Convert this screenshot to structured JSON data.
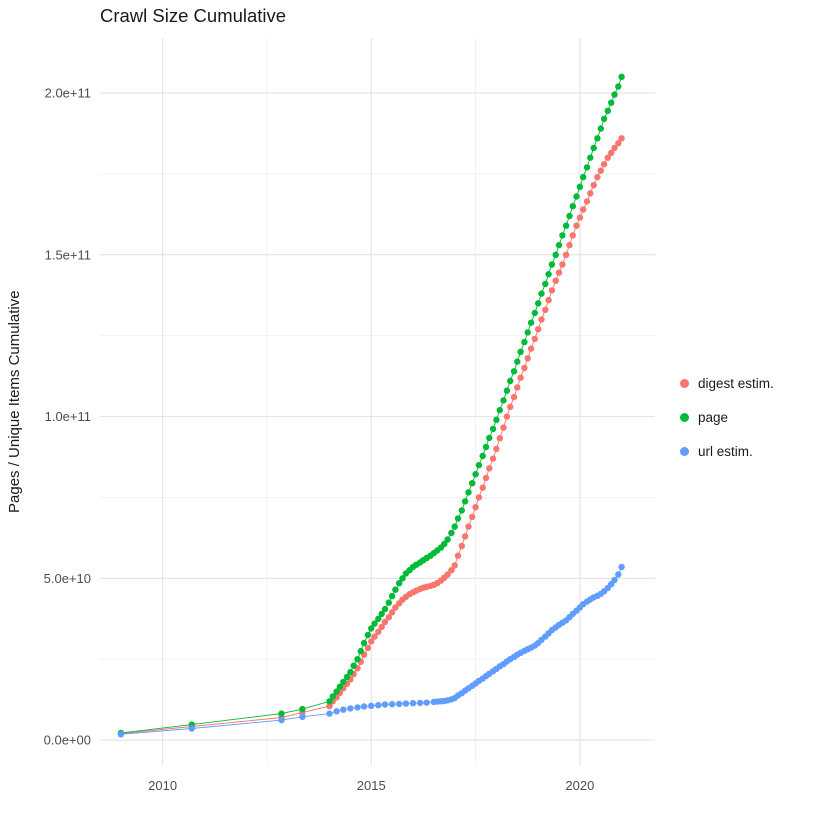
{
  "chart_data": {
    "type": "scatter",
    "title": "Crawl Size Cumulative",
    "xlabel": "",
    "ylabel": "Pages / Unique Items Cumulative",
    "value_unit": "1e9",
    "xlim": [
      2008.5,
      2021.8
    ],
    "ylim": [
      -8,
      217
    ],
    "grid": {
      "on": true,
      "x_minor": [
        2012.5,
        2017.5
      ],
      "y_minor": [
        25,
        75,
        125,
        175
      ]
    },
    "x_ticks": [
      {
        "value": 2010,
        "label": "2010"
      },
      {
        "value": 2015,
        "label": "2015"
      },
      {
        "value": 2020,
        "label": "2020"
      }
    ],
    "y_ticks": [
      {
        "value": 0,
        "label": "0.0e+00"
      },
      {
        "value": 50,
        "label": "5.0e+10"
      },
      {
        "value": 100,
        "label": "1.0e+11"
      },
      {
        "value": 150,
        "label": "1.5e+11"
      },
      {
        "value": 200,
        "label": "2.0e+11"
      }
    ],
    "legend_position": "right",
    "series": [
      {
        "name": "digest estim.",
        "color": "#F8766D",
        "points": [
          [
            2009.0,
            2.0
          ],
          [
            2010.7,
            4.2
          ],
          [
            2012.85,
            7.0
          ],
          [
            2013.35,
            8.5
          ],
          [
            2014.0,
            10.5
          ],
          [
            2014.08,
            12
          ],
          [
            2014.17,
            13.2
          ],
          [
            2014.25,
            14.6
          ],
          [
            2014.33,
            16
          ],
          [
            2014.42,
            17.4
          ],
          [
            2014.5,
            18.8
          ],
          [
            2014.58,
            20.4
          ],
          [
            2014.67,
            22.2
          ],
          [
            2014.75,
            24.2
          ],
          [
            2014.83,
            26.4
          ],
          [
            2014.92,
            28.5
          ],
          [
            2015.0,
            30.5
          ],
          [
            2015.08,
            32
          ],
          [
            2015.17,
            33.5
          ],
          [
            2015.25,
            35
          ],
          [
            2015.33,
            36.5
          ],
          [
            2015.42,
            38
          ],
          [
            2015.5,
            39.5
          ],
          [
            2015.58,
            41
          ],
          [
            2015.67,
            42.3
          ],
          [
            2015.75,
            43.4
          ],
          [
            2015.83,
            44.3
          ],
          [
            2015.92,
            45.1
          ],
          [
            2016.0,
            45.7
          ],
          [
            2016.08,
            46.2
          ],
          [
            2016.17,
            46.7
          ],
          [
            2016.25,
            47.1
          ],
          [
            2016.33,
            47.4
          ],
          [
            2016.42,
            47.7
          ],
          [
            2016.5,
            48
          ],
          [
            2016.58,
            48.5
          ],
          [
            2016.67,
            49.3
          ],
          [
            2016.75,
            50.2
          ],
          [
            2016.83,
            51.2
          ],
          [
            2016.92,
            52.5
          ],
          [
            2017.0,
            54
          ],
          [
            2017.08,
            57
          ],
          [
            2017.17,
            60
          ],
          [
            2017.25,
            63
          ],
          [
            2017.33,
            66
          ],
          [
            2017.42,
            69
          ],
          [
            2017.5,
            72
          ],
          [
            2017.58,
            75
          ],
          [
            2017.67,
            78
          ],
          [
            2017.75,
            81
          ],
          [
            2017.83,
            84
          ],
          [
            2017.92,
            87
          ],
          [
            2018.0,
            90
          ],
          [
            2018.08,
            93.3
          ],
          [
            2018.17,
            96.6
          ],
          [
            2018.25,
            100
          ],
          [
            2018.33,
            103
          ],
          [
            2018.42,
            106
          ],
          [
            2018.5,
            109
          ],
          [
            2018.58,
            112
          ],
          [
            2018.67,
            115
          ],
          [
            2018.75,
            118
          ],
          [
            2018.83,
            121
          ],
          [
            2018.92,
            124
          ],
          [
            2019.0,
            127
          ],
          [
            2019.08,
            130
          ],
          [
            2019.17,
            133
          ],
          [
            2019.25,
            136
          ],
          [
            2019.33,
            139
          ],
          [
            2019.42,
            142
          ],
          [
            2019.5,
            144.5
          ],
          [
            2019.58,
            147
          ],
          [
            2019.67,
            150
          ],
          [
            2019.75,
            153
          ],
          [
            2019.83,
            156
          ],
          [
            2019.92,
            159
          ],
          [
            2020.0,
            161.5
          ],
          [
            2020.08,
            164
          ],
          [
            2020.17,
            166.5
          ],
          [
            2020.25,
            169
          ],
          [
            2020.33,
            171.5
          ],
          [
            2020.42,
            174
          ],
          [
            2020.5,
            176
          ],
          [
            2020.58,
            178
          ],
          [
            2020.67,
            180
          ],
          [
            2020.75,
            181.5
          ],
          [
            2020.83,
            183
          ],
          [
            2020.92,
            184.5
          ],
          [
            2021.0,
            186
          ]
        ]
      },
      {
        "name": "page",
        "color": "#00BA38",
        "points": [
          [
            2009.0,
            2.2
          ],
          [
            2010.7,
            4.8
          ],
          [
            2012.85,
            8.2
          ],
          [
            2013.35,
            9.6
          ],
          [
            2014.0,
            12
          ],
          [
            2014.08,
            13.5
          ],
          [
            2014.17,
            15
          ],
          [
            2014.25,
            16.5
          ],
          [
            2014.33,
            18
          ],
          [
            2014.42,
            19.5
          ],
          [
            2014.5,
            21
          ],
          [
            2014.58,
            23
          ],
          [
            2014.67,
            25
          ],
          [
            2014.75,
            27.5
          ],
          [
            2014.83,
            30
          ],
          [
            2014.92,
            32.5
          ],
          [
            2015.0,
            34.5
          ],
          [
            2015.08,
            36
          ],
          [
            2015.17,
            37.5
          ],
          [
            2015.25,
            39
          ],
          [
            2015.33,
            40.5
          ],
          [
            2015.42,
            42.5
          ],
          [
            2015.5,
            44.5
          ],
          [
            2015.58,
            46.5
          ],
          [
            2015.67,
            48.5
          ],
          [
            2015.75,
            50
          ],
          [
            2015.83,
            51.5
          ],
          [
            2015.92,
            52.5
          ],
          [
            2016.0,
            53.5
          ],
          [
            2016.08,
            54.2
          ],
          [
            2016.17,
            54.9
          ],
          [
            2016.25,
            55.6
          ],
          [
            2016.33,
            56.3
          ],
          [
            2016.42,
            57
          ],
          [
            2016.5,
            57.8
          ],
          [
            2016.58,
            58.6
          ],
          [
            2016.67,
            59.5
          ],
          [
            2016.75,
            60.6
          ],
          [
            2016.83,
            62
          ],
          [
            2016.92,
            64
          ],
          [
            2017.0,
            66
          ],
          [
            2017.08,
            68.5
          ],
          [
            2017.17,
            71
          ],
          [
            2017.25,
            73.8
          ],
          [
            2017.33,
            76.6
          ],
          [
            2017.42,
            79.4
          ],
          [
            2017.5,
            82.2
          ],
          [
            2017.58,
            85
          ],
          [
            2017.67,
            87.8
          ],
          [
            2017.75,
            90.6
          ],
          [
            2017.83,
            93.4
          ],
          [
            2017.92,
            96.2
          ],
          [
            2018.0,
            99
          ],
          [
            2018.08,
            102
          ],
          [
            2018.17,
            105
          ],
          [
            2018.25,
            108
          ],
          [
            2018.33,
            111
          ],
          [
            2018.42,
            114
          ],
          [
            2018.5,
            117
          ],
          [
            2018.58,
            120
          ],
          [
            2018.67,
            123
          ],
          [
            2018.75,
            126
          ],
          [
            2018.83,
            129
          ],
          [
            2018.92,
            132
          ],
          [
            2019.0,
            135
          ],
          [
            2019.08,
            138
          ],
          [
            2019.17,
            141
          ],
          [
            2019.25,
            144
          ],
          [
            2019.33,
            147
          ],
          [
            2019.42,
            150
          ],
          [
            2019.5,
            153
          ],
          [
            2019.58,
            156
          ],
          [
            2019.67,
            159
          ],
          [
            2019.75,
            162
          ],
          [
            2019.83,
            165
          ],
          [
            2019.92,
            168
          ],
          [
            2020.0,
            171
          ],
          [
            2020.08,
            174
          ],
          [
            2020.17,
            177
          ],
          [
            2020.25,
            180
          ],
          [
            2020.33,
            183
          ],
          [
            2020.42,
            186
          ],
          [
            2020.5,
            189
          ],
          [
            2020.58,
            192
          ],
          [
            2020.67,
            194.5
          ],
          [
            2020.75,
            197
          ],
          [
            2020.83,
            199.5
          ],
          [
            2020.92,
            202
          ],
          [
            2021.0,
            205
          ]
        ]
      },
      {
        "name": "url estim.",
        "color": "#619CFF",
        "points": [
          [
            2009.0,
            1.8
          ],
          [
            2010.7,
            3.6
          ],
          [
            2012.85,
            6.2
          ],
          [
            2013.35,
            7.2
          ],
          [
            2014.0,
            8.2
          ],
          [
            2014.17,
            8.9
          ],
          [
            2014.33,
            9.4
          ],
          [
            2014.5,
            9.8
          ],
          [
            2014.67,
            10.1
          ],
          [
            2014.83,
            10.4
          ],
          [
            2015.0,
            10.6
          ],
          [
            2015.17,
            10.8
          ],
          [
            2015.33,
            11.0
          ],
          [
            2015.5,
            11.1
          ],
          [
            2015.67,
            11.2
          ],
          [
            2015.83,
            11.3
          ],
          [
            2016.0,
            11.4
          ],
          [
            2016.17,
            11.5
          ],
          [
            2016.33,
            11.6
          ],
          [
            2016.5,
            11.8
          ],
          [
            2016.58,
            11.9
          ],
          [
            2016.67,
            12.0
          ],
          [
            2016.75,
            12.1
          ],
          [
            2016.83,
            12.3
          ],
          [
            2016.92,
            12.6
          ],
          [
            2017.0,
            13.0
          ],
          [
            2017.08,
            13.8
          ],
          [
            2017.17,
            14.5
          ],
          [
            2017.25,
            15.3
          ],
          [
            2017.33,
            16.0
          ],
          [
            2017.42,
            16.8
          ],
          [
            2017.5,
            17.5
          ],
          [
            2017.58,
            18.3
          ],
          [
            2017.67,
            19.0
          ],
          [
            2017.75,
            19.8
          ],
          [
            2017.83,
            20.5
          ],
          [
            2017.92,
            21.3
          ],
          [
            2018.0,
            22.0
          ],
          [
            2018.08,
            22.8
          ],
          [
            2018.17,
            23.5
          ],
          [
            2018.25,
            24.3
          ],
          [
            2018.33,
            25.0
          ],
          [
            2018.42,
            25.7
          ],
          [
            2018.5,
            26.4
          ],
          [
            2018.58,
            27.0
          ],
          [
            2018.67,
            27.6
          ],
          [
            2018.75,
            28.1
          ],
          [
            2018.83,
            28.6
          ],
          [
            2018.92,
            29.2
          ],
          [
            2019.0,
            30.0
          ],
          [
            2019.08,
            31.0
          ],
          [
            2019.17,
            32.0
          ],
          [
            2019.25,
            33.0
          ],
          [
            2019.33,
            34.0
          ],
          [
            2019.42,
            34.8
          ],
          [
            2019.5,
            35.6
          ],
          [
            2019.58,
            36.3
          ],
          [
            2019.67,
            37.0
          ],
          [
            2019.75,
            38.0
          ],
          [
            2019.83,
            39.0
          ],
          [
            2019.92,
            40.0
          ],
          [
            2020.0,
            41.0
          ],
          [
            2020.08,
            42.0
          ],
          [
            2020.17,
            42.8
          ],
          [
            2020.25,
            43.5
          ],
          [
            2020.33,
            44.1
          ],
          [
            2020.42,
            44.6
          ],
          [
            2020.5,
            45.2
          ],
          [
            2020.58,
            46.0
          ],
          [
            2020.67,
            47.0
          ],
          [
            2020.75,
            48.2
          ],
          [
            2020.83,
            49.5
          ],
          [
            2020.92,
            51.2
          ],
          [
            2021.0,
            53.5
          ]
        ]
      }
    ],
    "colors": {
      "grid_major": "#e5e5e5",
      "grid_minor": "#f2f2f2",
      "tick_text": "#4d4d4d"
    }
  }
}
